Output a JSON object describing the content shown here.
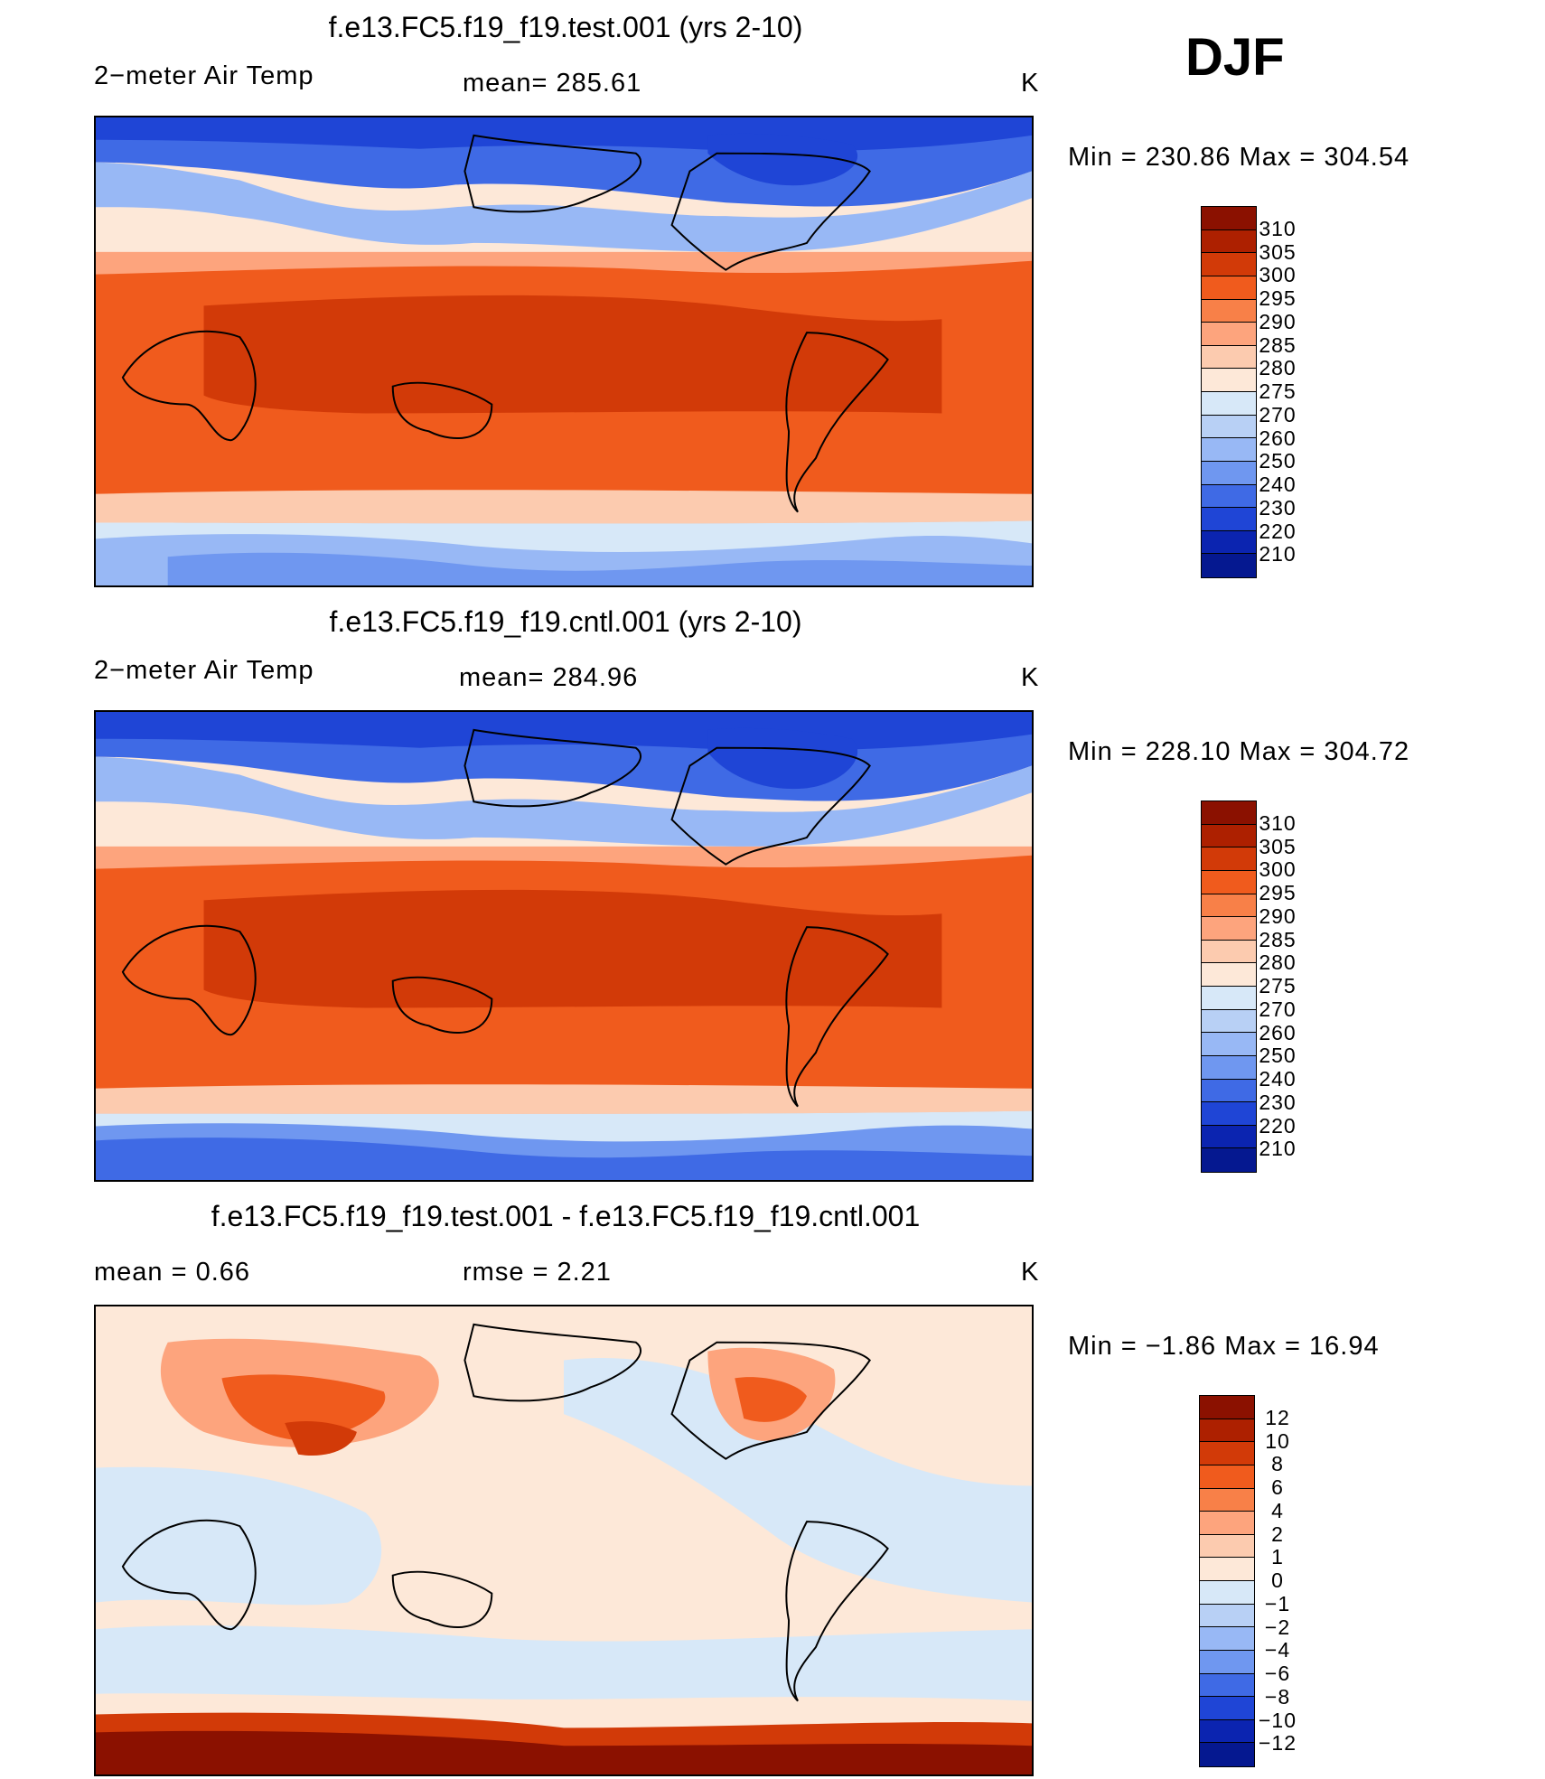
{
  "season": "DJF",
  "panels": [
    {
      "title": "f.e13.FC5.f19_f19.test.001 (yrs 2-10)",
      "left_label": "2−meter Air Temp",
      "mid_label": "mean=  285.61",
      "units": "K",
      "minmax": "Min  =  230.86  Max  =  304.54",
      "legend_labels": [
        "310",
        "305",
        "300",
        "295",
        "290",
        "285",
        "280",
        "275",
        "270",
        "260",
        "250",
        "240",
        "230",
        "220",
        "210"
      ],
      "legend_colors": [
        "#8b1100",
        "#ad2000",
        "#d23a08",
        "#f05b1d",
        "#f88048",
        "#fda47d",
        "#fccbaf",
        "#fde8d8",
        "#d7e8f8",
        "#b8d0f5",
        "#98b8f5",
        "#6f97f0",
        "#3f6ae5",
        "#1f45d6",
        "#0b24b0",
        "#051890"
      ]
    },
    {
      "title": "f.e13.FC5.f19_f19.cntl.001 (yrs 2-10)",
      "left_label": "2−meter Air Temp",
      "mid_label": "mean=  284.96",
      "units": "K",
      "minmax": "Min  =  228.10  Max  =  304.72",
      "legend_labels": [
        "310",
        "305",
        "300",
        "295",
        "290",
        "285",
        "280",
        "275",
        "270",
        "260",
        "250",
        "240",
        "230",
        "220",
        "210"
      ],
      "legend_colors": [
        "#8b1100",
        "#ad2000",
        "#d23a08",
        "#f05b1d",
        "#f88048",
        "#fda47d",
        "#fccbaf",
        "#fde8d8",
        "#d7e8f8",
        "#b8d0f5",
        "#98b8f5",
        "#6f97f0",
        "#3f6ae5",
        "#1f45d6",
        "#0b24b0",
        "#051890"
      ]
    },
    {
      "title": "f.e13.FC5.f19_f19.test.001 - f.e13.FC5.f19_f19.cntl.001",
      "left_label": "mean  =      0.66",
      "mid_label": "rmse  =      2.21",
      "units": "K",
      "minmax": "Min  =    −1.86  Max  =     16.94",
      "legend_labels": [
        "12",
        "10",
        "8",
        "6",
        "4",
        "2",
        "1",
        "0",
        "−1",
        "−2",
        "−4",
        "−6",
        "−8",
        "−10",
        "−12"
      ],
      "legend_colors": [
        "#8b1100",
        "#ad2000",
        "#d23a08",
        "#f05b1d",
        "#f88048",
        "#fda47d",
        "#fccbaf",
        "#fde8d8",
        "#d7e8f8",
        "#b8d0f5",
        "#98b8f5",
        "#6f97f0",
        "#3f6ae5",
        "#1f45d6",
        "#0b24b0",
        "#051890"
      ]
    }
  ]
}
